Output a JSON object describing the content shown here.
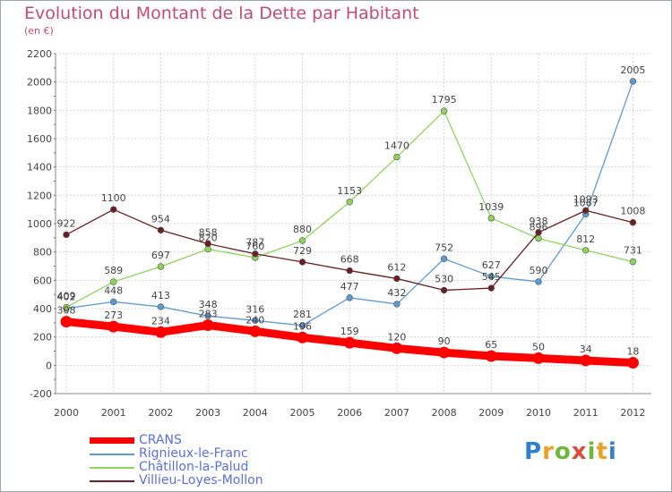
{
  "header": {
    "title": "Evolution du Montant de la Dette par Habitant",
    "unit": "(en €)"
  },
  "logo": {
    "text": "Proxiti",
    "colors": [
      "#2f7fd0",
      "#f0a020",
      "#6cb83a",
      "#e04a3a",
      "#6cb83a",
      "#f0a020",
      "#2f7fd0"
    ]
  },
  "chart_data": {
    "type": "line",
    "title": "Evolution du Montant de la Dette par Habitant",
    "ylabel": "(en €)",
    "xlabel": "",
    "x": [
      "2000",
      "2001",
      "2002",
      "2003",
      "2004",
      "2005",
      "2006",
      "2007",
      "2008",
      "2009",
      "2010",
      "2011",
      "2012"
    ],
    "ylim": [
      -200,
      2200
    ],
    "yticks": [
      -200,
      0,
      200,
      400,
      600,
      800,
      1000,
      1200,
      1400,
      1600,
      1800,
      2000,
      2200
    ],
    "grid": true,
    "legend_position": "bottom-left",
    "series": [
      {
        "name": "CRANS",
        "color": "#ff0000",
        "bold": true,
        "values": [
          308,
          273,
          234,
          283,
          240,
          196,
          159,
          120,
          90,
          65,
          50,
          34,
          18
        ]
      },
      {
        "name": "Rignieux-le-Franc",
        "color": "#5b9bd5",
        "bold": false,
        "values": [
          402,
          448,
          413,
          348,
          316,
          281,
          477,
          432,
          752,
          627,
          590,
          1067,
          2005
        ]
      },
      {
        "name": "Châtillon-la-Palud",
        "color": "#8fd45a",
        "bold": false,
        "values": [
          409,
          589,
          697,
          820,
          760,
          880,
          1153,
          1470,
          1795,
          1039,
          896,
          812,
          731
        ]
      },
      {
        "name": "Villieu-Loyes-Mollon",
        "color": "#6b1f24",
        "bold": false,
        "values": [
          922,
          1100,
          954,
          858,
          787,
          729,
          668,
          612,
          530,
          545,
          938,
          1093,
          1008
        ]
      }
    ]
  }
}
